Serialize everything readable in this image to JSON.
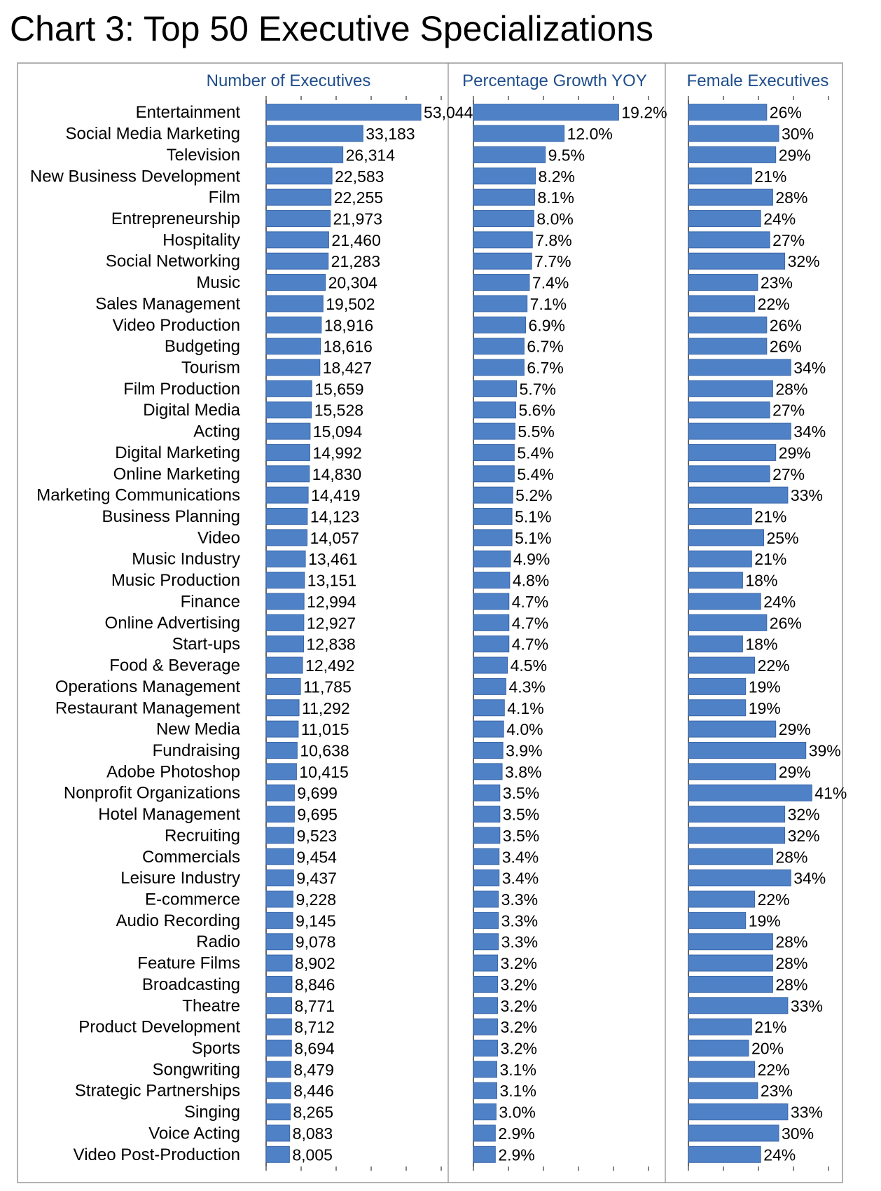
{
  "title": "Chart 3: Top 50 Executive Specializations",
  "colors": {
    "bar": "#4f81c7",
    "bar_stroke": "#3a66a8",
    "axis": "#333333",
    "panel_title": "#1f4e8c",
    "frame": "#999999"
  },
  "chart_data": {
    "type": "bar",
    "orientation": "horizontal",
    "categories": [
      "Entertainment",
      "Social Media Marketing",
      "Television",
      "New Business Development",
      "Film",
      "Entrepreneurship",
      "Hospitality",
      "Social Networking",
      "Music",
      "Sales Management",
      "Video Production",
      "Budgeting",
      "Tourism",
      "Film Production",
      "Digital Media",
      "Acting",
      "Digital Marketing",
      "Online Marketing",
      "Marketing Communications",
      "Business Planning",
      "Video",
      "Music Industry",
      "Music Production",
      "Finance",
      "Online Advertising",
      "Start-ups",
      "Food & Beverage",
      "Operations Management",
      "Restaurant Management",
      "New Media",
      "Fundraising",
      "Adobe Photoshop",
      "Nonprofit Organizations",
      "Hotel Management",
      "Recruiting",
      "Commercials",
      "Leisure Industry",
      "E-commerce",
      "Audio Recording",
      "Radio",
      "Feature Films",
      "Broadcasting",
      "Theatre",
      "Product Development",
      "Sports",
      "Songwriting",
      "Strategic Partnerships",
      "Singing",
      "Voice Acting",
      "Video Post-Production"
    ],
    "series": [
      {
        "name": "Number of Executives",
        "values": [
          53044,
          33183,
          26314,
          22583,
          22255,
          21973,
          21460,
          21283,
          20304,
          19502,
          18916,
          18616,
          18427,
          15659,
          15528,
          15094,
          14992,
          14830,
          14419,
          14123,
          14057,
          13461,
          13151,
          12994,
          12927,
          12838,
          12492,
          11785,
          11292,
          11015,
          10638,
          10415,
          9699,
          9695,
          9523,
          9454,
          9437,
          9228,
          9145,
          9078,
          8902,
          8846,
          8771,
          8712,
          8694,
          8479,
          8446,
          8265,
          8083,
          8005
        ],
        "labels": [
          "53,044",
          "33,183",
          "26,314",
          "22,583",
          "22,255",
          "21,973",
          "21,460",
          "21,283",
          "20,304",
          "19,502",
          "18,916",
          "18,616",
          "18,427",
          "15,659",
          "15,528",
          "15,094",
          "14,992",
          "14,830",
          "14,419",
          "14,123",
          "14,057",
          "13,461",
          "13,151",
          "12,994",
          "12,927",
          "12,838",
          "12,492",
          "11,785",
          "11,292",
          "11,015",
          "10,638",
          "10,415",
          "9,699",
          "9,695",
          "9,523",
          "9,454",
          "9,437",
          "9,228",
          "9,145",
          "9,078",
          "8,902",
          "8,846",
          "8,771",
          "8,712",
          "8,694",
          "8,479",
          "8,446",
          "8,265",
          "8,083",
          "8,005"
        ],
        "xlim": [
          0,
          60000
        ]
      },
      {
        "name": "Percentage Growth YOY",
        "values": [
          19.2,
          12.0,
          9.5,
          8.2,
          8.1,
          8.0,
          7.8,
          7.7,
          7.4,
          7.1,
          6.9,
          6.7,
          6.7,
          5.7,
          5.6,
          5.5,
          5.4,
          5.4,
          5.2,
          5.1,
          5.1,
          4.9,
          4.8,
          4.7,
          4.7,
          4.7,
          4.5,
          4.3,
          4.1,
          4.0,
          3.9,
          3.8,
          3.5,
          3.5,
          3.5,
          3.4,
          3.4,
          3.3,
          3.3,
          3.3,
          3.2,
          3.2,
          3.2,
          3.2,
          3.2,
          3.1,
          3.1,
          3.0,
          2.9,
          2.9
        ],
        "labels": [
          "19.2%",
          "12.0%",
          "9.5%",
          "8.2%",
          "8.1%",
          "8.0%",
          "7.8%",
          "7.7%",
          "7.4%",
          "7.1%",
          "6.9%",
          "6.7%",
          "6.7%",
          "5.7%",
          "5.6%",
          "5.5%",
          "5.4%",
          "5.4%",
          "5.2%",
          "5.1%",
          "5.1%",
          "4.9%",
          "4.8%",
          "4.7%",
          "4.7%",
          "4.7%",
          "4.5%",
          "4.3%",
          "4.1%",
          "4.0%",
          "3.9%",
          "3.8%",
          "3.5%",
          "3.5%",
          "3.5%",
          "3.4%",
          "3.4%",
          "3.3%",
          "3.3%",
          "3.3%",
          "3.2%",
          "3.2%",
          "3.2%",
          "3.2%",
          "3.2%",
          "3.1%",
          "3.1%",
          "3.0%",
          "2.9%",
          "2.9%"
        ],
        "xlim": [
          0,
          25
        ]
      },
      {
        "name": "Female Executives",
        "values": [
          26,
          30,
          29,
          21,
          28,
          24,
          27,
          32,
          23,
          22,
          26,
          26,
          34,
          28,
          27,
          34,
          29,
          27,
          33,
          21,
          25,
          21,
          18,
          24,
          26,
          18,
          22,
          19,
          19,
          29,
          39,
          29,
          41,
          32,
          32,
          28,
          34,
          22,
          19,
          28,
          28,
          28,
          33,
          21,
          20,
          22,
          23,
          33,
          30,
          24
        ],
        "labels": [
          "26%",
          "30%",
          "29%",
          "21%",
          "28%",
          "24%",
          "27%",
          "32%",
          "23%",
          "22%",
          "26%",
          "26%",
          "34%",
          "28%",
          "27%",
          "34%",
          "29%",
          "27%",
          "33%",
          "21%",
          "25%",
          "21%",
          "18%",
          "24%",
          "26%",
          "18%",
          "22%",
          "19%",
          "19%",
          "29%",
          "39%",
          "29%",
          "41%",
          "32%",
          "32%",
          "28%",
          "34%",
          "22%",
          "19%",
          "28%",
          "28%",
          "28%",
          "33%",
          "21%",
          "20%",
          "22%",
          "23%",
          "33%",
          "30%",
          "24%"
        ],
        "xlim": [
          0,
          50
        ]
      }
    ],
    "grid": false,
    "legend": "none"
  }
}
